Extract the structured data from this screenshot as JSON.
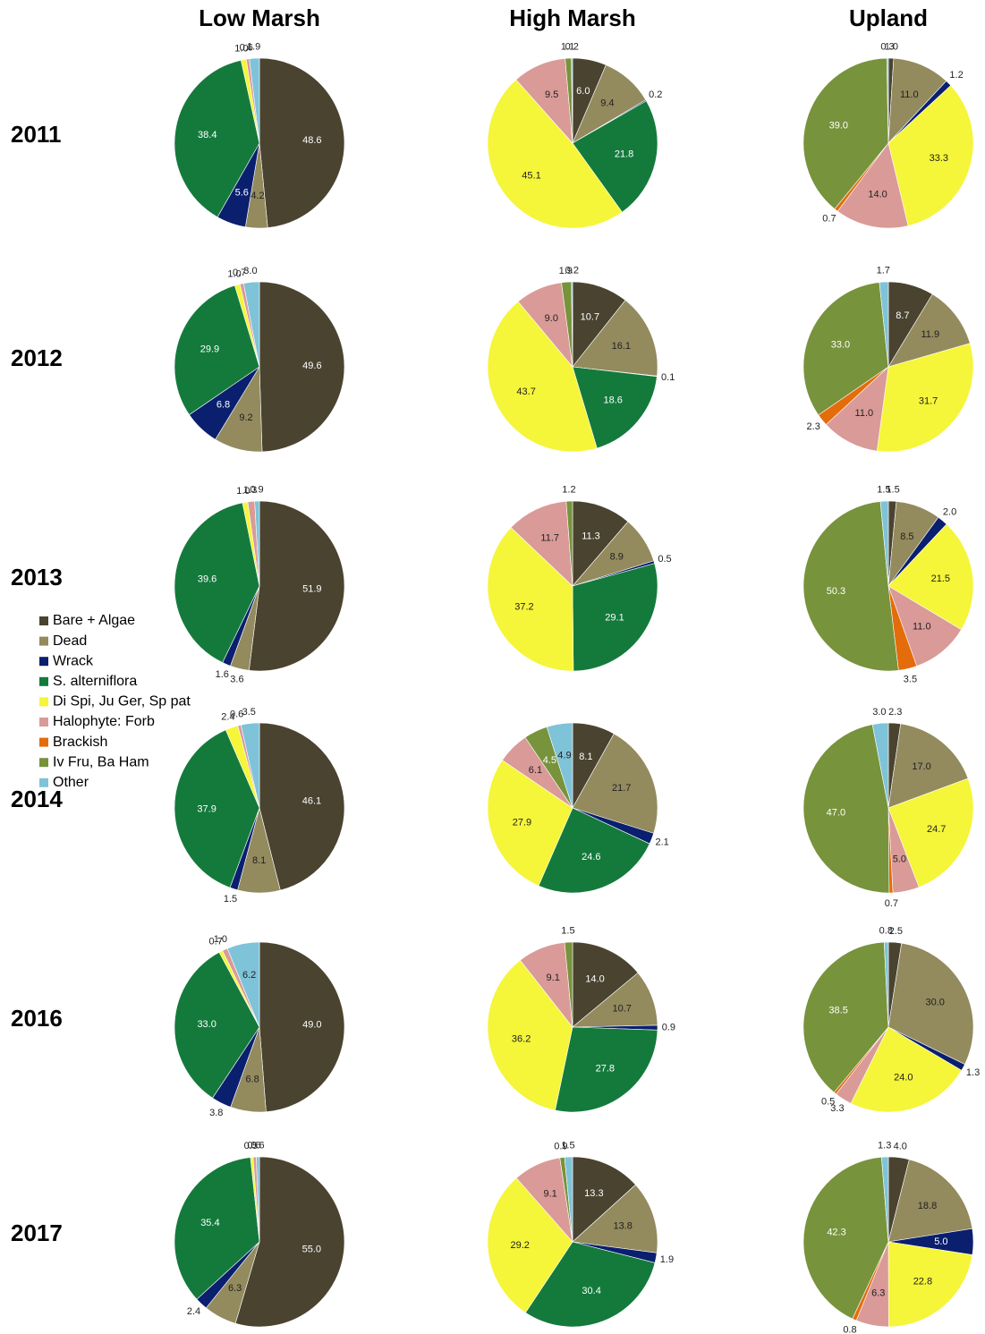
{
  "columns": [
    "Low Marsh",
    "High Marsh",
    "Upland"
  ],
  "rows": [
    "2011",
    "2012",
    "2013",
    "2014",
    "2016",
    "2017"
  ],
  "legend": {
    "categories": [
      "Bare + Algae",
      "Dead",
      "Wrack",
      "S. alterniflora",
      "Di Spi, Ju Ger, Sp pat",
      "Halophyte: Forb",
      "Brackish",
      "Iv Fru, Ba Ham",
      "Other"
    ],
    "colors": [
      "#4a4330",
      "#938a5e",
      "#0a1f6e",
      "#147a3c",
      "#f5f53a",
      "#d99a98",
      "#e46c0a",
      "#77933c",
      "#7ec3d8"
    ]
  },
  "chart_data": [
    {
      "type": "pie",
      "values": [
        48.6,
        4.2,
        5.6,
        38.4,
        1.0,
        0.6,
        null,
        null,
        1.9
      ],
      "value_labels": [
        "48.6",
        "4.2",
        "5.6",
        "38.4",
        "1.0",
        "0.6",
        null,
        null,
        "1.9"
      ]
    },
    {
      "type": "pie",
      "values": [
        6.0,
        9.4,
        0.2,
        21.8,
        45.1,
        9.5,
        null,
        1.1,
        0.2
      ],
      "value_labels": [
        "6.0",
        "9.4",
        "0.2",
        "21.8",
        "45.1",
        "9.5",
        null,
        "1.1",
        "0.2"
      ]
    },
    {
      "type": "pie",
      "values": [
        1.0,
        11.0,
        1.2,
        null,
        33.3,
        14.0,
        0.7,
        39.0,
        0.3
      ],
      "value_labels": [
        "1.0",
        "11.0",
        "1.2",
        null,
        "33.3",
        "14.0",
        "0.7",
        "39.0",
        "0.3"
      ]
    },
    {
      "type": "pie",
      "values": [
        49.6,
        9.2,
        6.8,
        29.9,
        1.0,
        0.7,
        null,
        null,
        3.0
      ],
      "value_labels": [
        "49.6",
        "9.2",
        "6.8",
        "29.9",
        "1.0",
        "0.7",
        null,
        null,
        "3.0"
      ]
    },
    {
      "type": "pie",
      "values": [
        10.7,
        16.1,
        0.1,
        18.6,
        43.7,
        9.0,
        null,
        1.9,
        0.2
      ],
      "value_labels": [
        "10.7",
        "16.1",
        "0.1",
        "18.6",
        "43.7",
        "9.0",
        null,
        "1.9",
        "0.2"
      ]
    },
    {
      "type": "pie",
      "values": [
        8.7,
        11.9,
        null,
        null,
        31.7,
        11.0,
        2.3,
        33.0,
        1.7
      ],
      "value_labels": [
        "8.7",
        "11.9",
        null,
        null,
        "31.7",
        "11.0",
        "2.3",
        "33.0",
        "1.7"
      ]
    },
    {
      "type": "pie",
      "values": [
        51.9,
        3.6,
        1.6,
        39.6,
        1.0,
        1.3,
        null,
        null,
        0.9
      ],
      "value_labels": [
        "51.9",
        "3.6",
        "1.6",
        "39.6",
        "1.0",
        "1.3",
        null,
        null,
        "0.9"
      ]
    },
    {
      "type": "pie",
      "values": [
        11.3,
        8.9,
        0.5,
        29.1,
        37.2,
        11.7,
        null,
        1.2,
        null
      ],
      "value_labels": [
        "11.3",
        "8.9",
        "0.5",
        "29.1",
        "37.2",
        "11.7",
        null,
        "1.2",
        null
      ]
    },
    {
      "type": "pie",
      "values": [
        1.5,
        8.5,
        2.0,
        null,
        21.5,
        11.0,
        3.5,
        50.3,
        1.5
      ],
      "value_labels": [
        "1.5",
        "8.5",
        "2.0",
        null,
        "21.5",
        "11.0",
        "3.5",
        "50.3",
        "1.5"
      ]
    },
    {
      "type": "pie",
      "values": [
        46.1,
        8.1,
        1.5,
        37.9,
        2.4,
        0.6,
        null,
        null,
        3.5
      ],
      "value_labels": [
        "46.1",
        "8.1",
        "1.5",
        "37.9",
        "2.4",
        "0.6",
        null,
        null,
        "3.5"
      ]
    },
    {
      "type": "pie",
      "values": [
        8.1,
        21.7,
        2.1,
        24.6,
        27.9,
        6.1,
        null,
        4.5,
        4.9
      ],
      "value_labels": [
        "8.1",
        "21.7",
        "2.1",
        "24.6",
        "27.9",
        "6.1",
        null,
        "4.5",
        "4.9"
      ]
    },
    {
      "type": "pie",
      "values": [
        2.3,
        17.0,
        null,
        null,
        24.7,
        5.0,
        0.7,
        47.0,
        3.0
      ],
      "value_labels": [
        "2.3",
        "17.0",
        null,
        null,
        "24.7",
        "5.0",
        "0.7",
        "47.0",
        "3.0"
      ]
    },
    {
      "type": "pie",
      "values": [
        49.0,
        6.8,
        3.8,
        33.0,
        0.7,
        1.0,
        null,
        null,
        6.2
      ],
      "value_labels": [
        "49.0",
        "6.8",
        "3.8",
        "33.0",
        "0.7",
        "1.0",
        null,
        null,
        "6.2"
      ]
    },
    {
      "type": "pie",
      "values": [
        14.0,
        10.7,
        0.9,
        27.8,
        36.2,
        9.1,
        null,
        1.5,
        null
      ],
      "value_labels": [
        "14.0",
        "10.7",
        "0.9",
        "27.8",
        "36.2",
        "9.1",
        null,
        "1.5",
        null
      ]
    },
    {
      "type": "pie",
      "values": [
        2.5,
        30.0,
        1.3,
        null,
        24.0,
        3.3,
        0.5,
        38.5,
        0.8
      ],
      "value_labels": [
        "2.5",
        "30.0",
        "1.3",
        null,
        "24.0",
        "3.3",
        "0.5",
        "38.5",
        "0.8"
      ]
    },
    {
      "type": "pie",
      "values": [
        55.0,
        6.3,
        2.4,
        35.4,
        0.5,
        0.6,
        null,
        null,
        0.6
      ],
      "value_labels": [
        "55.0",
        "6.3",
        "2.4",
        "35.4",
        "0.5",
        "0.6",
        null,
        null,
        "0.6"
      ]
    },
    {
      "type": "pie",
      "values": [
        13.3,
        13.8,
        1.9,
        30.4,
        29.2,
        9.1,
        null,
        0.9,
        1.5
      ],
      "value_labels": [
        "13.3",
        "13.8",
        "1.9",
        "30.4",
        "29.2",
        "9.1",
        null,
        "0.9",
        "1.5"
      ]
    },
    {
      "type": "pie",
      "values": [
        4.0,
        18.8,
        5.0,
        null,
        22.8,
        6.3,
        0.8,
        42.3,
        1.3
      ],
      "value_labels": [
        "4.0",
        "18.8",
        "5.0",
        null,
        "22.8",
        "6.3",
        "0.8",
        "42.3",
        "1.3"
      ]
    }
  ]
}
